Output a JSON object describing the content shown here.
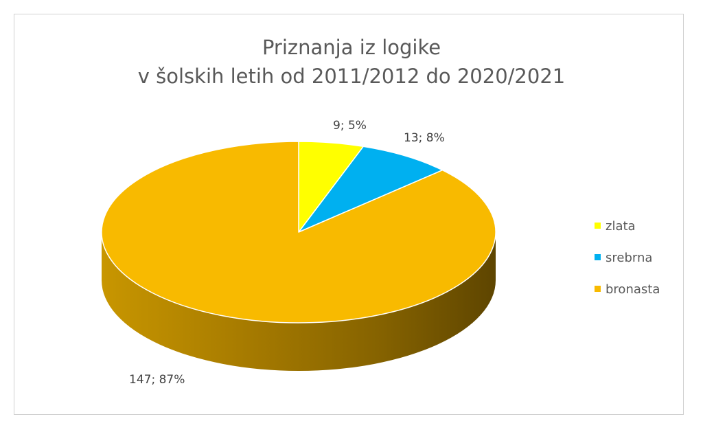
{
  "chart_data": {
    "type": "pie",
    "style": "3d",
    "title_lines": [
      "Priznanja iz logike",
      "v šolskih letih od 2011/2012 do 2020/2021"
    ],
    "categories": [
      "zlata",
      "srebrna",
      "bronasta"
    ],
    "values": [
      9,
      13,
      147
    ],
    "data_labels": [
      "9; 5%",
      "13; 8%",
      "147; 87%"
    ],
    "colors": [
      "#FFFF00",
      "#00B0F0",
      "#F8BA00"
    ],
    "legend_position": "right"
  }
}
